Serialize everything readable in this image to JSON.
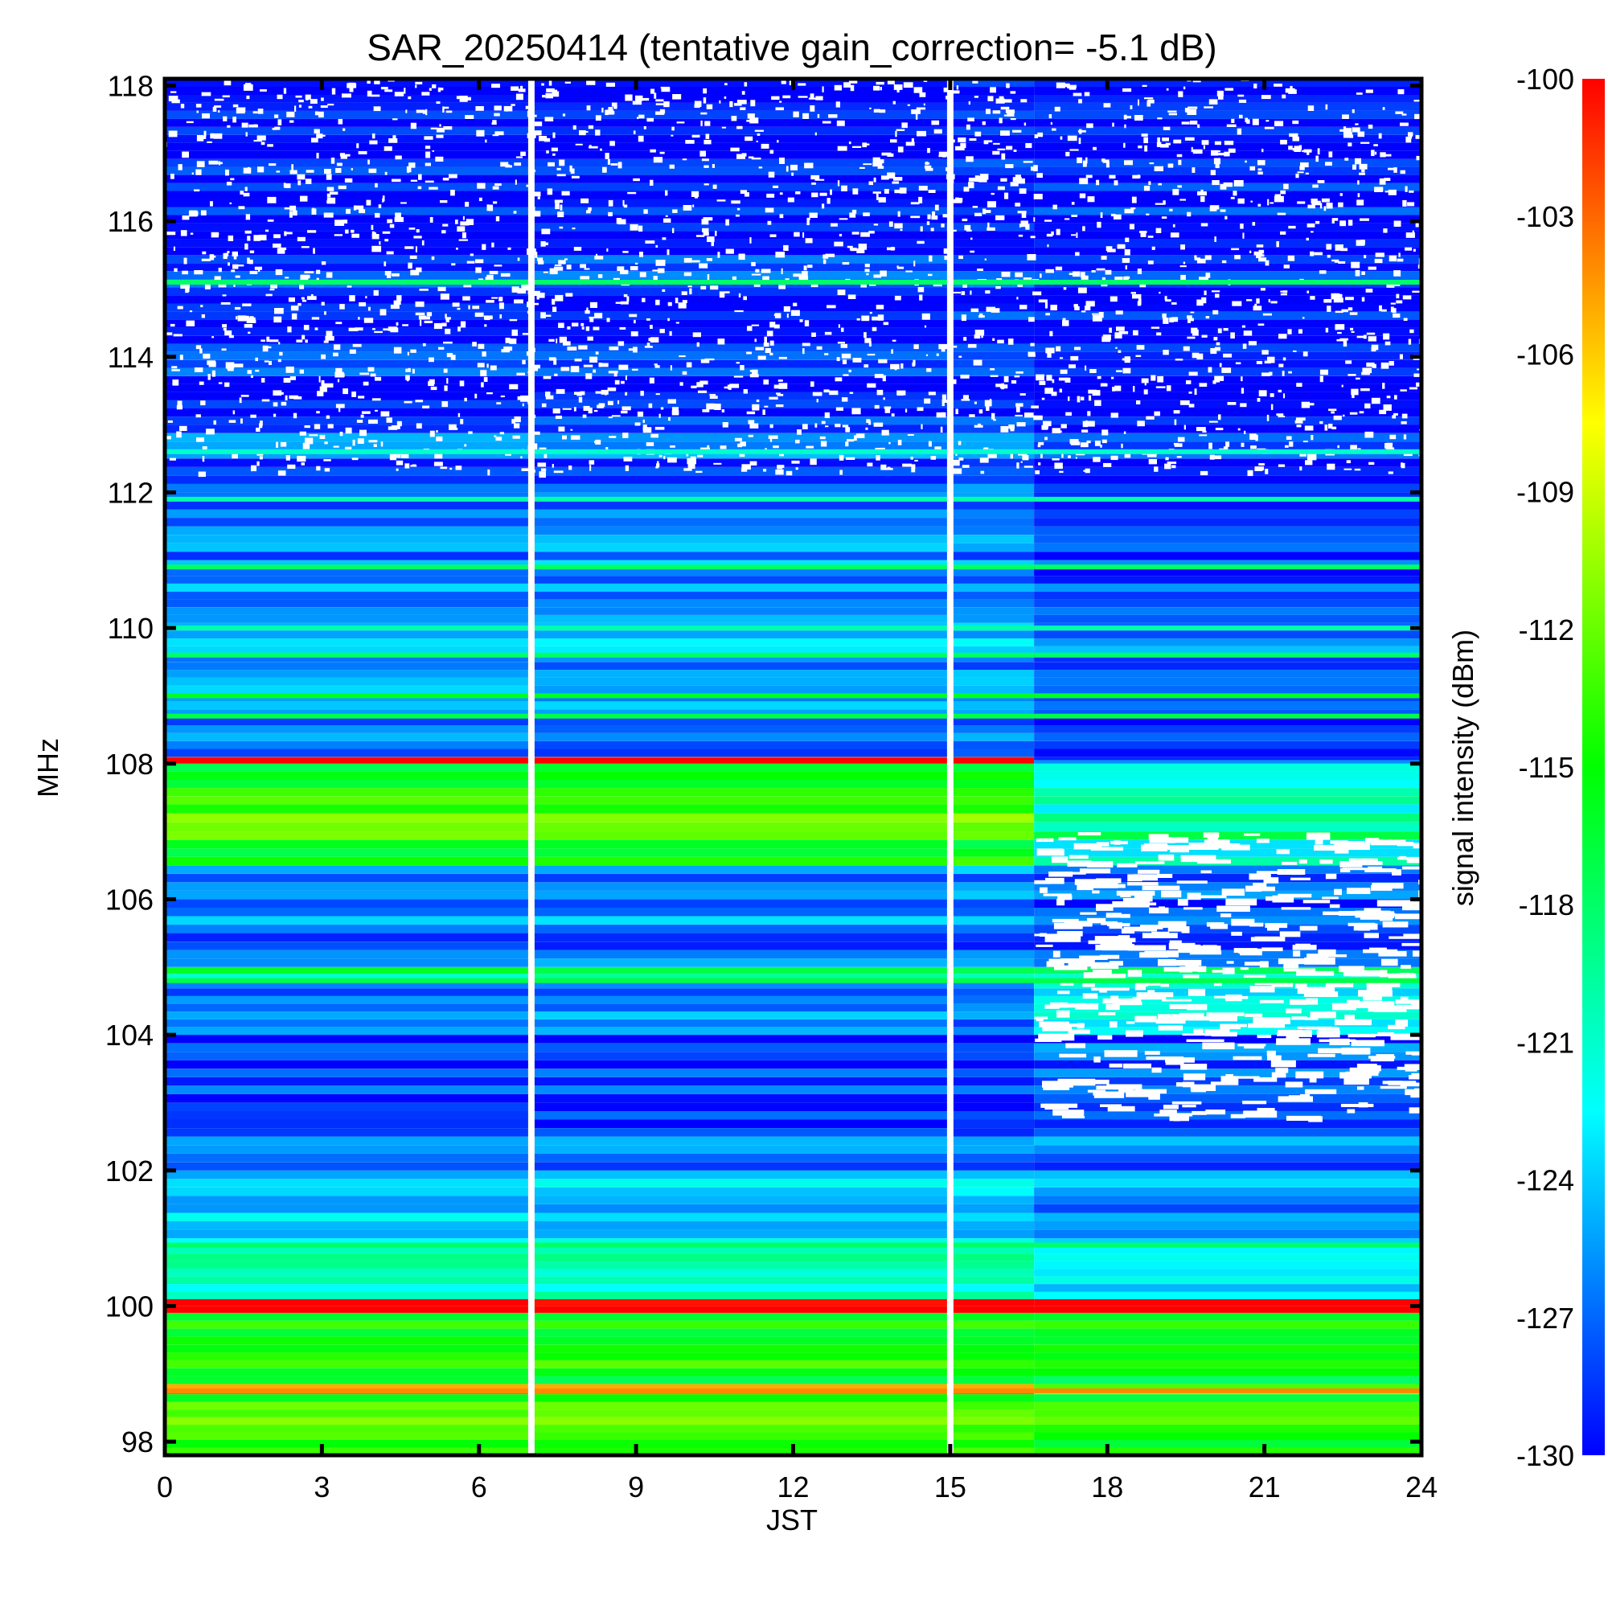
{
  "chart_data": {
    "type": "heatmap",
    "title": "SAR_20250414 (tentative gain_correction= -5.1 dB)",
    "xlabel": "JST",
    "ylabel": "MHz",
    "colorbar_label": "signal intensity (dBm)",
    "xlim": [
      0,
      24
    ],
    "ylim": [
      97.8,
      118.1
    ],
    "clim": [
      -130,
      -100
    ],
    "x_ticks": [
      "0",
      "3",
      "6",
      "9",
      "12",
      "15",
      "18",
      "21",
      "24"
    ],
    "x_tick_values": [
      0,
      3,
      6,
      9,
      12,
      15,
      18,
      21,
      24
    ],
    "y_ticks": [
      "98",
      "100",
      "102",
      "104",
      "106",
      "108",
      "110",
      "112",
      "114",
      "116",
      "118"
    ],
    "y_tick_values": [
      98,
      100,
      102,
      104,
      106,
      108,
      110,
      112,
      114,
      116,
      118
    ],
    "colorbar_ticks": [
      "-100",
      "-103",
      "-106",
      "-109",
      "-112",
      "-115",
      "-118",
      "-121",
      "-124",
      "-127",
      "-130"
    ],
    "colorbar_tick_values": [
      -100,
      -103,
      -106,
      -109,
      -112,
      -115,
      -118,
      -121,
      -124,
      -127,
      -130
    ],
    "colormap": [
      "#0000ff",
      "#0080ff",
      "#00ffff",
      "#00ff80",
      "#00ff00",
      "#80ff00",
      "#ffff00",
      "#ff8000",
      "#ff0000"
    ],
    "data_gaps_jst": [
      7.0,
      15.0
    ],
    "regime_change_jst": 16.6,
    "freq_bands": [
      {
        "from": 97.8,
        "to": 98.7,
        "level_before": -113,
        "level_after": -114
      },
      {
        "from": 98.7,
        "to": 98.85,
        "level_before": -104,
        "level_after": -112
      },
      {
        "from": 98.85,
        "to": 99.9,
        "level_before": -115,
        "level_after": -115
      },
      {
        "from": 99.9,
        "to": 100.1,
        "level_before": -100,
        "level_after": -100
      },
      {
        "from": 100.1,
        "to": 101.0,
        "level_before": -121,
        "level_after": -123
      },
      {
        "from": 101.0,
        "to": 102.0,
        "level_before": -124,
        "level_after": -125
      },
      {
        "from": 102.0,
        "to": 102.5,
        "level_before": -126,
        "level_after": -126
      },
      {
        "from": 102.5,
        "to": 103.0,
        "level_before": -128,
        "level_after": -127
      },
      {
        "from": 103.0,
        "to": 104.0,
        "level_before": -129,
        "level_after": -128
      },
      {
        "from": 104.0,
        "to": 104.8,
        "level_before": -127,
        "level_after": -123
      },
      {
        "from": 104.8,
        "to": 105.0,
        "level_before": -119,
        "level_after": -120
      },
      {
        "from": 105.0,
        "to": 106.0,
        "level_before": -126,
        "level_after": -127
      },
      {
        "from": 106.0,
        "to": 106.5,
        "level_before": -127,
        "level_after": -128
      },
      {
        "from": 106.5,
        "to": 107.0,
        "level_before": -114,
        "level_after": -120
      },
      {
        "from": 107.0,
        "to": 107.4,
        "level_before": -112,
        "level_after": -121
      },
      {
        "from": 107.4,
        "to": 108.0,
        "level_before": -115,
        "level_after": -121
      },
      {
        "from": 108.0,
        "to": 108.1,
        "level_before": -100,
        "level_after": -127
      },
      {
        "from": 108.1,
        "to": 109.5,
        "level_before": -126,
        "level_after": -128
      },
      {
        "from": 109.5,
        "to": 111.0,
        "level_before": -125,
        "level_after": -127
      },
      {
        "from": 111.0,
        "to": 112.0,
        "level_before": -126,
        "level_after": -128
      },
      {
        "from": 112.0,
        "to": 113.0,
        "level_before": -127,
        "level_after": -129
      },
      {
        "from": 113.0,
        "to": 115.5,
        "level_before": -129,
        "level_after": -130
      },
      {
        "from": 115.5,
        "to": 118.1,
        "level_before": -130,
        "level_after": -130
      }
    ],
    "spectral_lines": [
      {
        "freq": 99.95,
        "level": -100
      },
      {
        "freq": 98.75,
        "level": -104
      },
      {
        "freq": 108.05,
        "level": -100,
        "until_jst": 16.6
      },
      {
        "freq": 100.9,
        "level": -118
      },
      {
        "freq": 104.8,
        "level": -117
      },
      {
        "freq": 108.7,
        "level": -117
      },
      {
        "freq": 109.0,
        "level": -116
      },
      {
        "freq": 109.6,
        "level": -118
      },
      {
        "freq": 110.0,
        "level": -120
      },
      {
        "freq": 110.9,
        "level": -118
      },
      {
        "freq": 111.9,
        "level": -120
      },
      {
        "freq": 112.6,
        "level": -121
      },
      {
        "freq": 115.1,
        "level": -118
      }
    ]
  }
}
